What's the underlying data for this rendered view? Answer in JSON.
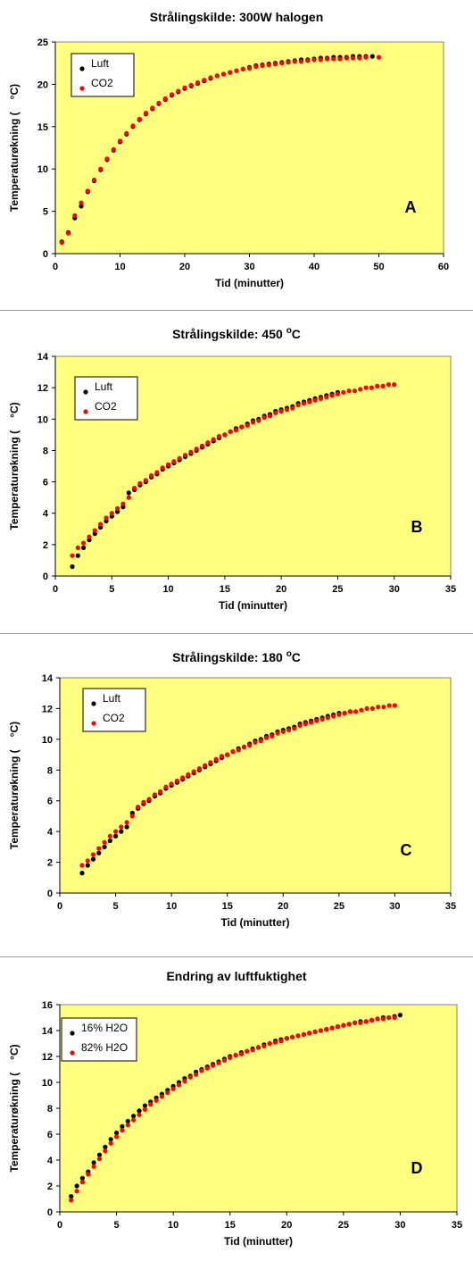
{
  "chart_data": [
    {
      "type": "scatter",
      "title": "Strålingskilde: 300W halogen",
      "xlabel": "Tid (minutter)",
      "ylabel": "Temperaturøkning (",
      "ylabel_unit": "°C)",
      "panel_letter": "A",
      "xlim": [
        0,
        60
      ],
      "ylim": [
        0,
        25
      ],
      "xticks": [
        "0",
        "10",
        "20",
        "30",
        "40",
        "50",
        "60"
      ],
      "yticks": [
        "0",
        "5",
        "10",
        "15",
        "20",
        "25"
      ],
      "grid": false,
      "legend_position": "top-left",
      "colors": {
        "background": "#ffff80",
        "series1": "#000000",
        "series2": "#ff0000"
      },
      "series": [
        {
          "name": "Luft",
          "x": [
            1,
            2,
            3,
            4,
            5,
            6,
            7,
            8,
            9,
            10,
            11,
            12,
            13,
            14,
            15,
            16,
            17,
            18,
            19,
            20,
            21,
            22,
            23,
            24,
            25,
            26,
            27,
            28,
            29,
            30,
            31,
            32,
            33,
            34,
            35,
            36,
            37,
            38,
            39,
            40,
            41,
            42,
            43,
            44,
            45,
            46,
            47,
            48,
            49
          ],
          "y": [
            1.4,
            2.5,
            4.2,
            5.6,
            7.3,
            8.6,
            9.9,
            11.1,
            12.2,
            13.2,
            14.1,
            15.0,
            15.8,
            16.5,
            17.1,
            17.7,
            18.2,
            18.7,
            19.1,
            19.5,
            19.8,
            20.1,
            20.4,
            20.7,
            21.0,
            21.2,
            21.4,
            21.6,
            21.8,
            22.0,
            22.2,
            22.3,
            22.4,
            22.5,
            22.6,
            22.7,
            22.8,
            22.9,
            22.9,
            23.0,
            23.1,
            23.1,
            23.2,
            23.2,
            23.2,
            23.3,
            23.3,
            23.3,
            23.3
          ]
        },
        {
          "name": "CO2",
          "x": [
            1,
            2,
            3,
            4,
            5,
            6,
            7,
            8,
            9,
            10,
            11,
            12,
            13,
            14,
            15,
            16,
            17,
            18,
            19,
            20,
            21,
            22,
            23,
            24,
            25,
            26,
            27,
            28,
            29,
            30,
            31,
            32,
            33,
            34,
            35,
            36,
            37,
            38,
            39,
            40,
            41,
            42,
            43,
            44,
            45,
            46,
            47,
            48,
            50
          ],
          "y": [
            1.3,
            2.4,
            4.5,
            6.0,
            7.4,
            8.7,
            10.0,
            11.2,
            12.3,
            13.3,
            14.2,
            15.1,
            15.9,
            16.6,
            17.2,
            17.8,
            18.3,
            18.8,
            19.2,
            19.6,
            19.9,
            20.2,
            20.5,
            20.8,
            21.0,
            21.2,
            21.4,
            21.6,
            21.8,
            21.9,
            22.1,
            22.2,
            22.3,
            22.4,
            22.5,
            22.6,
            22.7,
            22.7,
            22.8,
            22.9,
            22.9,
            23.0,
            23.0,
            23.0,
            23.1,
            23.1,
            23.1,
            23.2,
            23.2
          ]
        }
      ]
    },
    {
      "type": "scatter",
      "title": "Strålingskilde: 450 ",
      "title_sup": "o",
      "title_tail": "C",
      "xlabel": "Tid (minutter)",
      "ylabel": "Temperaturøkning (",
      "ylabel_unit": "°C)",
      "panel_letter": "B",
      "xlim": [
        0,
        35
      ],
      "ylim": [
        0,
        14
      ],
      "xticks": [
        "0",
        "5",
        "10",
        "15",
        "20",
        "25",
        "30",
        "35"
      ],
      "yticks": [
        "0",
        "2",
        "4",
        "6",
        "8",
        "10",
        "12",
        "14"
      ],
      "grid": false,
      "legend_position": "top-left",
      "colors": {
        "background": "#ffff80",
        "series1": "#000000",
        "series2": "#ff0000"
      },
      "series": [
        {
          "name": "Luft",
          "x": [
            1.5,
            2,
            2.5,
            3,
            3.5,
            4,
            4.5,
            5,
            5.5,
            6,
            6.5,
            7,
            7.5,
            8,
            8.5,
            9,
            9.5,
            10,
            10.5,
            11,
            11.5,
            12,
            12.5,
            13,
            13.5,
            14,
            14.5,
            15,
            15.5,
            16,
            16.5,
            17,
            17.5,
            18,
            18.5,
            19,
            19.5,
            20,
            20.5,
            21,
            21.5,
            22,
            22.5,
            23,
            23.5,
            24,
            24.5,
            25
          ],
          "y": [
            0.6,
            1.3,
            1.8,
            2.3,
            2.7,
            3.1,
            3.5,
            3.8,
            4.1,
            4.4,
            5.3,
            5.5,
            5.8,
            6.0,
            6.3,
            6.5,
            6.8,
            7.0,
            7.2,
            7.4,
            7.6,
            7.8,
            8.0,
            8.2,
            8.4,
            8.6,
            8.8,
            9.0,
            9.2,
            9.4,
            9.5,
            9.7,
            9.9,
            10.0,
            10.2,
            10.3,
            10.5,
            10.6,
            10.7,
            10.8,
            11.0,
            11.1,
            11.2,
            11.3,
            11.4,
            11.5,
            11.6,
            11.7
          ]
        },
        {
          "name": "CO2",
          "x": [
            1.5,
            2,
            2.5,
            3,
            3.5,
            4,
            4.5,
            5,
            5.5,
            6,
            6.5,
            7,
            7.5,
            8,
            8.5,
            9,
            9.5,
            10,
            10.5,
            11,
            11.5,
            12,
            12.5,
            13,
            13.5,
            14,
            14.5,
            15,
            15.5,
            16,
            16.5,
            17,
            17.5,
            18,
            18.5,
            19,
            19.5,
            20,
            20.5,
            21,
            21.5,
            22,
            22.5,
            23,
            23.5,
            24,
            24.5,
            25,
            25.5,
            26,
            26.5,
            27,
            27.5,
            28,
            28.5,
            29,
            29.5,
            30
          ],
          "y": [
            1.3,
            1.8,
            2.1,
            2.5,
            2.9,
            3.3,
            3.7,
            4.0,
            4.3,
            4.6,
            5.0,
            5.6,
            5.9,
            6.1,
            6.4,
            6.6,
            6.9,
            7.1,
            7.3,
            7.5,
            7.7,
            7.9,
            8.1,
            8.3,
            8.5,
            8.7,
            8.9,
            9.0,
            9.2,
            9.3,
            9.5,
            9.6,
            9.8,
            9.9,
            10.1,
            10.2,
            10.4,
            10.5,
            10.6,
            10.7,
            10.9,
            11.0,
            11.1,
            11.2,
            11.3,
            11.4,
            11.5,
            11.6,
            11.7,
            11.8,
            11.8,
            11.9,
            12.0,
            12.0,
            12.1,
            12.1,
            12.2,
            12.2
          ]
        }
      ]
    },
    {
      "type": "scatter",
      "title": "Strålingskilde: 180 ",
      "title_sup": "o",
      "title_tail": "C",
      "xlabel": "Tid (minutter)",
      "ylabel": "Temperaturøkning (",
      "ylabel_unit": "°C)",
      "panel_letter": "C",
      "xlim": [
        0,
        35
      ],
      "ylim": [
        0,
        14
      ],
      "xticks": [
        "0",
        "5",
        "10",
        "15",
        "20",
        "25",
        "30",
        "35"
      ],
      "yticks": [
        "0",
        "2",
        "4",
        "6",
        "8",
        "10",
        "12",
        "14"
      ],
      "grid": false,
      "legend_position": "top-left",
      "colors": {
        "background": "#ffff80",
        "series1": "#000000",
        "series2": "#ff0000"
      },
      "series": [
        {
          "name": "Luft",
          "x": [
            2,
            2.5,
            3,
            3.5,
            4,
            4.5,
            5,
            5.5,
            6,
            6.5,
            7,
            7.5,
            8,
            8.5,
            9,
            9.5,
            10,
            10.5,
            11,
            11.5,
            12,
            12.5,
            13,
            13.5,
            14,
            14.5,
            15,
            15.5,
            16,
            16.5,
            17,
            17.5,
            18,
            18.5,
            19,
            19.5,
            20,
            20.5,
            21,
            21.5,
            22,
            22.5,
            23,
            23.5,
            24,
            24.5,
            25,
            25.5,
            26
          ],
          "y": [
            1.3,
            1.8,
            2.2,
            2.6,
            3.0,
            3.4,
            3.7,
            4.0,
            4.3,
            5.2,
            5.5,
            5.8,
            6.0,
            6.3,
            6.5,
            6.8,
            7.0,
            7.2,
            7.4,
            7.6,
            7.8,
            8.0,
            8.2,
            8.4,
            8.6,
            8.8,
            9.0,
            9.2,
            9.4,
            9.5,
            9.7,
            9.9,
            10.0,
            10.2,
            10.3,
            10.5,
            10.6,
            10.7,
            10.8,
            11.0,
            11.1,
            11.2,
            11.3,
            11.4,
            11.5,
            11.6,
            11.7,
            11.7,
            11.8
          ]
        },
        {
          "name": "CO2",
          "x": [
            2,
            2.5,
            3,
            3.5,
            4,
            4.5,
            5,
            5.5,
            6,
            6.5,
            7,
            7.5,
            8,
            8.5,
            9,
            9.5,
            10,
            10.5,
            11,
            11.5,
            12,
            12.5,
            13,
            13.5,
            14,
            14.5,
            15,
            15.5,
            16,
            16.5,
            17,
            17.5,
            18,
            18.5,
            19,
            19.5,
            20,
            20.5,
            21,
            21.5,
            22,
            22.5,
            23,
            23.5,
            24,
            24.5,
            25,
            25.5,
            26,
            26.5,
            27,
            27.5,
            28,
            28.5,
            29,
            29.5,
            30
          ],
          "y": [
            1.8,
            2.1,
            2.5,
            2.9,
            3.3,
            3.7,
            4.0,
            4.3,
            4.6,
            5.0,
            5.6,
            5.9,
            6.1,
            6.4,
            6.6,
            6.9,
            7.1,
            7.3,
            7.5,
            7.7,
            7.9,
            8.1,
            8.3,
            8.5,
            8.7,
            8.9,
            9.0,
            9.2,
            9.3,
            9.5,
            9.6,
            9.8,
            9.9,
            10.1,
            10.2,
            10.4,
            10.5,
            10.6,
            10.7,
            10.9,
            11.0,
            11.1,
            11.2,
            11.3,
            11.4,
            11.5,
            11.6,
            11.7,
            11.8,
            11.8,
            11.9,
            12.0,
            12.0,
            12.1,
            12.1,
            12.2,
            12.2
          ]
        }
      ]
    },
    {
      "type": "scatter",
      "title": "Endring av luftfuktighet",
      "xlabel": "Tid (minutter)",
      "ylabel": "Temperaturøkning (",
      "ylabel_unit": "°C)",
      "panel_letter": "D",
      "xlim": [
        0,
        35
      ],
      "ylim": [
        0,
        16
      ],
      "xticks": [
        "0",
        "5",
        "10",
        "15",
        "20",
        "25",
        "30",
        "35"
      ],
      "yticks": [
        "0",
        "2",
        "4",
        "6",
        "8",
        "10",
        "12",
        "14",
        "16"
      ],
      "grid": false,
      "legend_position": "top-left",
      "colors": {
        "background": "#ffff80",
        "series1": "#000000",
        "series2": "#ff0000"
      },
      "series": [
        {
          "name": "16% H2O",
          "x": [
            1,
            1.5,
            2,
            2.5,
            3,
            3.5,
            4,
            4.5,
            5,
            5.5,
            6,
            6.5,
            7,
            7.5,
            8,
            8.5,
            9,
            9.5,
            10,
            10.5,
            11,
            11.5,
            12,
            12.5,
            13,
            13.5,
            14,
            14.5,
            15,
            15.5,
            16,
            16.5,
            17,
            17.5,
            18,
            18.5,
            19,
            19.5,
            20,
            20.5,
            21,
            21.5,
            22,
            22.5,
            23,
            23.5,
            24,
            24.5,
            25,
            25.5,
            26,
            26.5,
            27,
            27.5,
            28,
            28.5,
            29,
            29.5,
            30
          ],
          "y": [
            1.2,
            2.0,
            2.6,
            3.1,
            3.8,
            4.4,
            5.0,
            5.6,
            6.1,
            6.6,
            7.0,
            7.4,
            7.8,
            8.2,
            8.5,
            8.8,
            9.1,
            9.4,
            9.7,
            10.0,
            10.3,
            10.5,
            10.8,
            11.0,
            11.2,
            11.4,
            11.6,
            11.8,
            12.0,
            12.1,
            12.3,
            12.4,
            12.6,
            12.7,
            12.9,
            13.0,
            13.2,
            13.3,
            13.4,
            13.5,
            13.6,
            13.7,
            13.8,
            13.9,
            14.0,
            14.1,
            14.2,
            14.3,
            14.4,
            14.5,
            14.6,
            14.7,
            14.7,
            14.8,
            14.9,
            15.0,
            15.0,
            15.1,
            15.2
          ]
        },
        {
          "name": "82% H2O",
          "x": [
            1,
            1.5,
            2,
            2.5,
            3,
            3.5,
            4,
            4.5,
            5,
            5.5,
            6,
            6.5,
            7,
            7.5,
            8,
            8.5,
            9,
            9.5,
            10,
            10.5,
            11,
            11.5,
            12,
            12.5,
            13,
            13.5,
            14,
            14.5,
            15,
            15.5,
            16,
            16.5,
            17,
            17.5,
            18,
            18.5,
            19,
            19.5,
            20,
            20.5,
            21,
            21.5,
            22,
            22.5,
            23,
            23.5,
            24,
            24.5,
            25,
            25.5,
            26,
            26.5,
            27,
            27.5,
            28,
            28.5,
            29,
            29.5
          ],
          "y": [
            0.9,
            1.6,
            2.3,
            2.9,
            3.5,
            4.1,
            4.7,
            5.3,
            5.8,
            6.3,
            6.7,
            7.1,
            7.5,
            7.9,
            8.3,
            8.6,
            8.9,
            9.2,
            9.5,
            9.8,
            10.1,
            10.4,
            10.6,
            10.9,
            11.1,
            11.3,
            11.5,
            11.7,
            11.9,
            12.1,
            12.2,
            12.4,
            12.5,
            12.7,
            12.8,
            13.0,
            13.1,
            13.2,
            13.4,
            13.5,
            13.6,
            13.7,
            13.8,
            13.9,
            14.0,
            14.1,
            14.2,
            14.3,
            14.4,
            14.5,
            14.6,
            14.6,
            14.7,
            14.8,
            14.9,
            14.9,
            15.0,
            15.0
          ]
        }
      ]
    }
  ]
}
